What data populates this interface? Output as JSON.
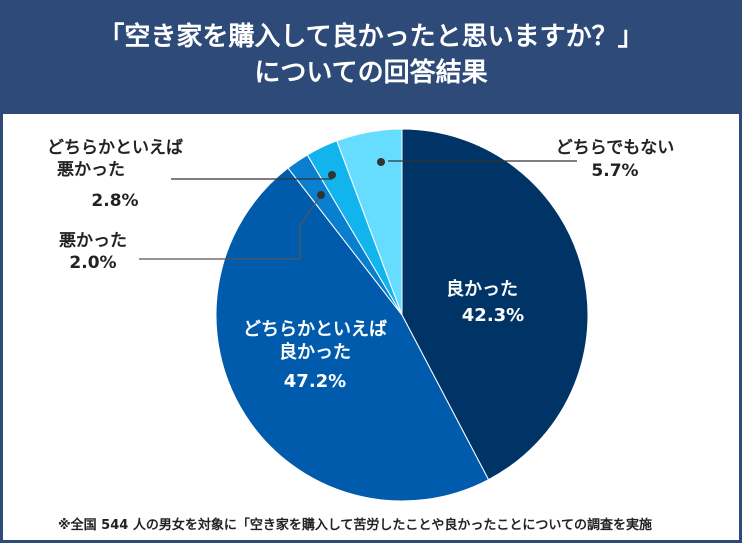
{
  "header": {
    "title_line1": "「空き家を購入して良かったと思いますか？」",
    "title_line2": "についての回答結果"
  },
  "footnote": "※全国 544 人の男女を対象に「空き家を購入して苦労したことや良かったことについての調査を実施",
  "colors": {
    "header_bg": "#2e4a78",
    "leader_line": "#333333"
  },
  "chart_data": {
    "type": "pie",
    "title": "「空き家を購入して良かったと思いますか？」についての回答結果",
    "start": "12 o'clock",
    "direction": "clockwise",
    "slices": [
      {
        "label": "良かった",
        "label_lines": [
          "良かった"
        ],
        "value": 42.3,
        "display": "42.3%",
        "color": "#003366"
      },
      {
        "label": "どちらかといえば良かった",
        "label_lines": [
          "どちらかといえば",
          "良かった"
        ],
        "value": 47.2,
        "display": "47.2%",
        "color": "#005bac"
      },
      {
        "label": "悪かった",
        "label_lines": [
          "悪かった"
        ],
        "value": 2.0,
        "display": "2.0%",
        "color": "#0a7fd0"
      },
      {
        "label": "どちらかといえば悪かった",
        "label_lines": [
          "どちらかといえば",
          "悪かった"
        ],
        "value": 2.8,
        "display": "2.8%",
        "color": "#12b4ee"
      },
      {
        "label": "どちらでもない",
        "label_lines": [
          "どちらでもない"
        ],
        "value": 5.7,
        "display": "5.7%",
        "color": "#66ddff"
      }
    ]
  }
}
